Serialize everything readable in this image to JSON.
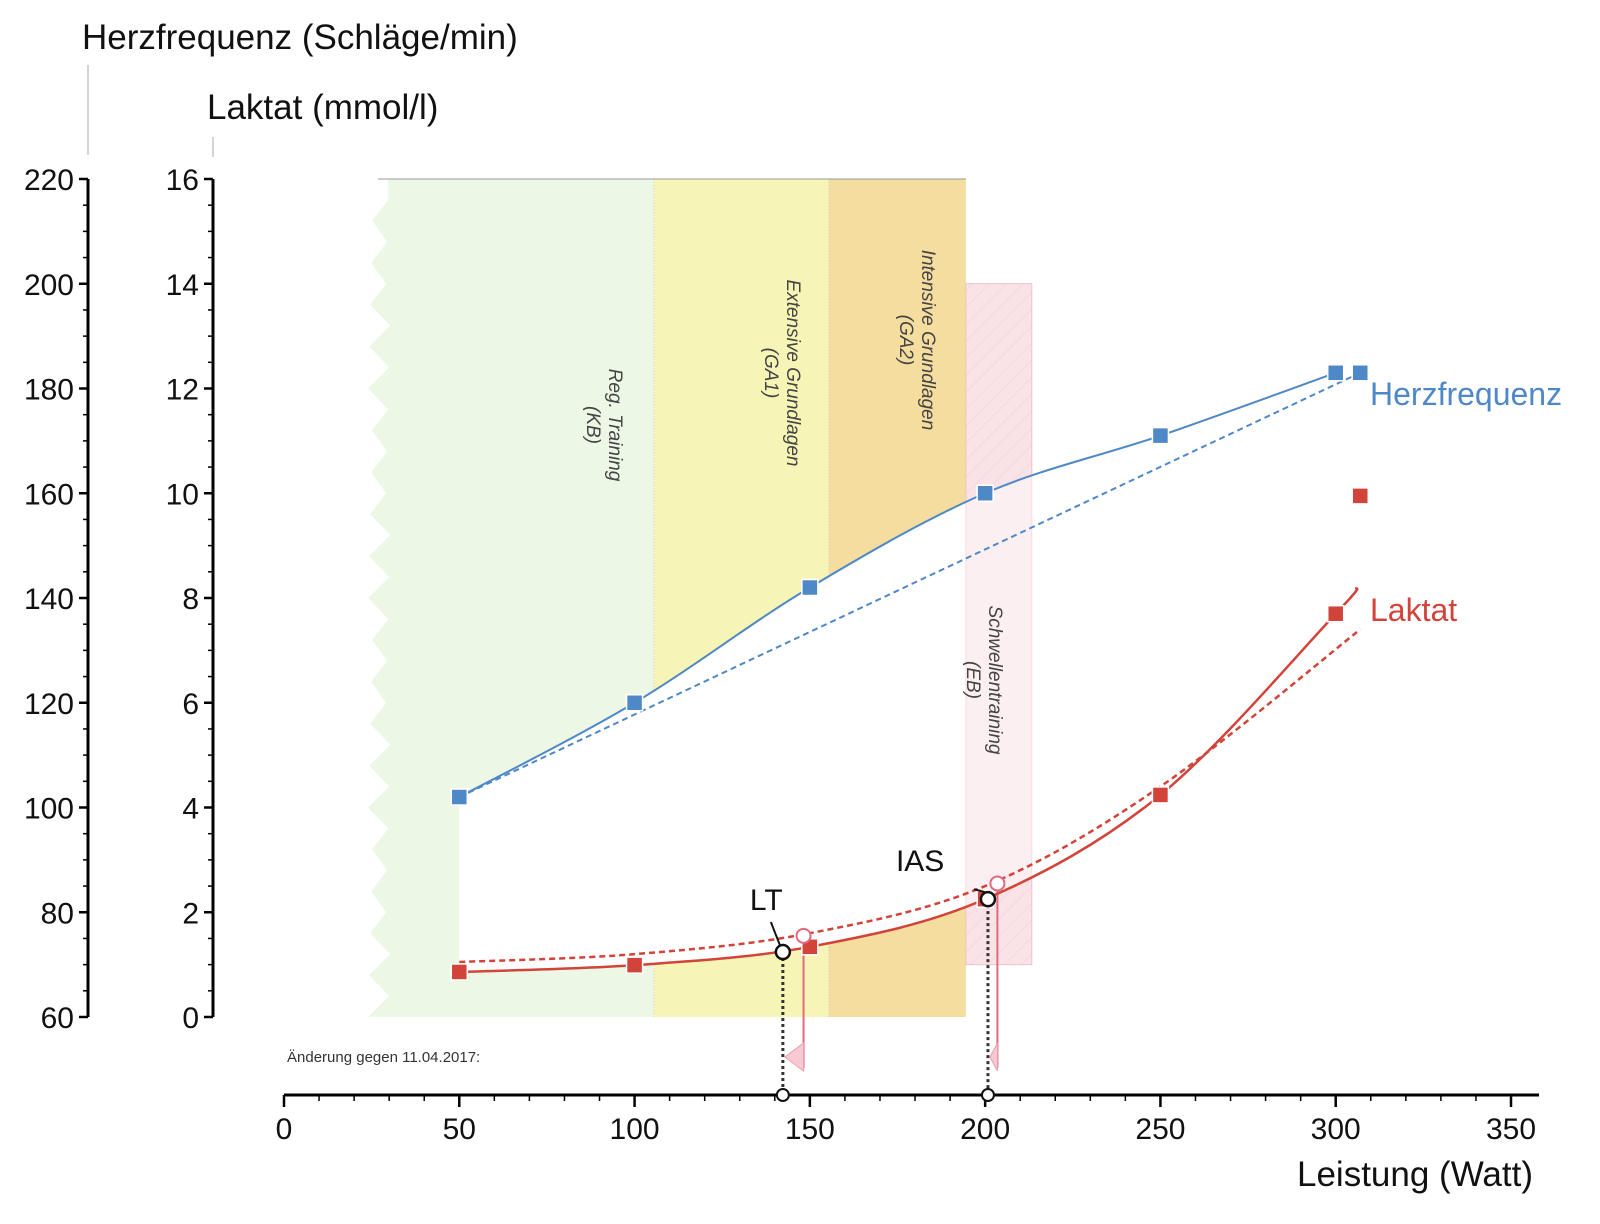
{
  "chart_data": {
    "type": "line",
    "title": "",
    "xlabel": "Leistung (Watt)",
    "xlim": [
      0,
      350
    ],
    "xticks": [
      0,
      50,
      100,
      150,
      200,
      250,
      300,
      350
    ],
    "y_axes": [
      {
        "id": "hf",
        "label": "Herzfrequenz (Schläge/min)",
        "ylim": [
          60,
          220
        ],
        "ticks": [
          60,
          80,
          100,
          120,
          140,
          160,
          180,
          200,
          220
        ],
        "minor_step": 5
      },
      {
        "id": "laktat",
        "label": "Laktat (mmol/l)",
        "ylim": [
          0,
          16
        ],
        "ticks": [
          0,
          2,
          4,
          6,
          8,
          10,
          12,
          14,
          16
        ],
        "minor_step": 0.5
      }
    ],
    "series": [
      {
        "name": "Herzfrequenz",
        "axis": "hf",
        "color": "#4f88c6",
        "points": [
          {
            "x": 50,
            "y": 102
          },
          {
            "x": 100,
            "y": 120
          },
          {
            "x": 150,
            "y": 142
          },
          {
            "x": 200,
            "y": 160
          },
          {
            "x": 250,
            "y": 171
          },
          {
            "x": 300,
            "y": 183
          }
        ],
        "extra_point": {
          "x": 307,
          "y": 183
        },
        "fit_line_dashed": [
          {
            "x": 50,
            "y": 102
          },
          {
            "x": 307,
            "y": 183
          }
        ]
      },
      {
        "name": "Laktat",
        "axis": "laktat",
        "color": "#d2433a",
        "points": [
          {
            "x": 50,
            "y": 0.86
          },
          {
            "x": 100,
            "y": 0.99
          },
          {
            "x": 150,
            "y": 1.34
          },
          {
            "x": 200,
            "y": 2.25
          },
          {
            "x": 250,
            "y": 4.24
          },
          {
            "x": 300,
            "y": 7.7
          }
        ],
        "extra_point": {
          "x": 307,
          "y": 9.95
        },
        "previous_curve_dashed": [
          {
            "x": 50,
            "y": 1.05
          },
          {
            "x": 100,
            "y": 1.2
          },
          {
            "x": 150,
            "y": 1.6
          },
          {
            "x": 200,
            "y": 2.5
          },
          {
            "x": 250,
            "y": 4.4
          },
          {
            "x": 307,
            "y": 7.4
          }
        ]
      }
    ],
    "zones": [
      {
        "name": "Reg. Training",
        "abbr": "(KB)",
        "x_from": 24,
        "x_to": 105.5,
        "color": "#edf7e6"
      },
      {
        "name": "Extensive Grundlagen",
        "abbr": "(GA1)",
        "x_from": 105.5,
        "x_to": 155.4,
        "color": "#f6f5b6"
      },
      {
        "name": "Intensive Grundlagen",
        "abbr": "(GA2)",
        "x_from": 155.4,
        "x_to": 194.5,
        "color": "#f4dd9f"
      },
      {
        "name": "Schwellentraining",
        "abbr": "(EB)",
        "x_from": 194.5,
        "x_to": 213.3,
        "y_from": 1.0,
        "y_to": 14.0,
        "color": "#f9e3e6"
      }
    ],
    "thresholds": [
      {
        "label": "LT",
        "x": 142.3,
        "laktat": 1.24,
        "previous": {
          "x": 148.2,
          "laktat": 1.55
        }
      },
      {
        "label": "IAS",
        "x": 200.8,
        "laktat": 2.25,
        "previous": {
          "x": 203.5,
          "laktat": 2.55
        }
      }
    ],
    "annotation": "Änderung gegen 11.04.2017:",
    "legend": "inline-right"
  }
}
